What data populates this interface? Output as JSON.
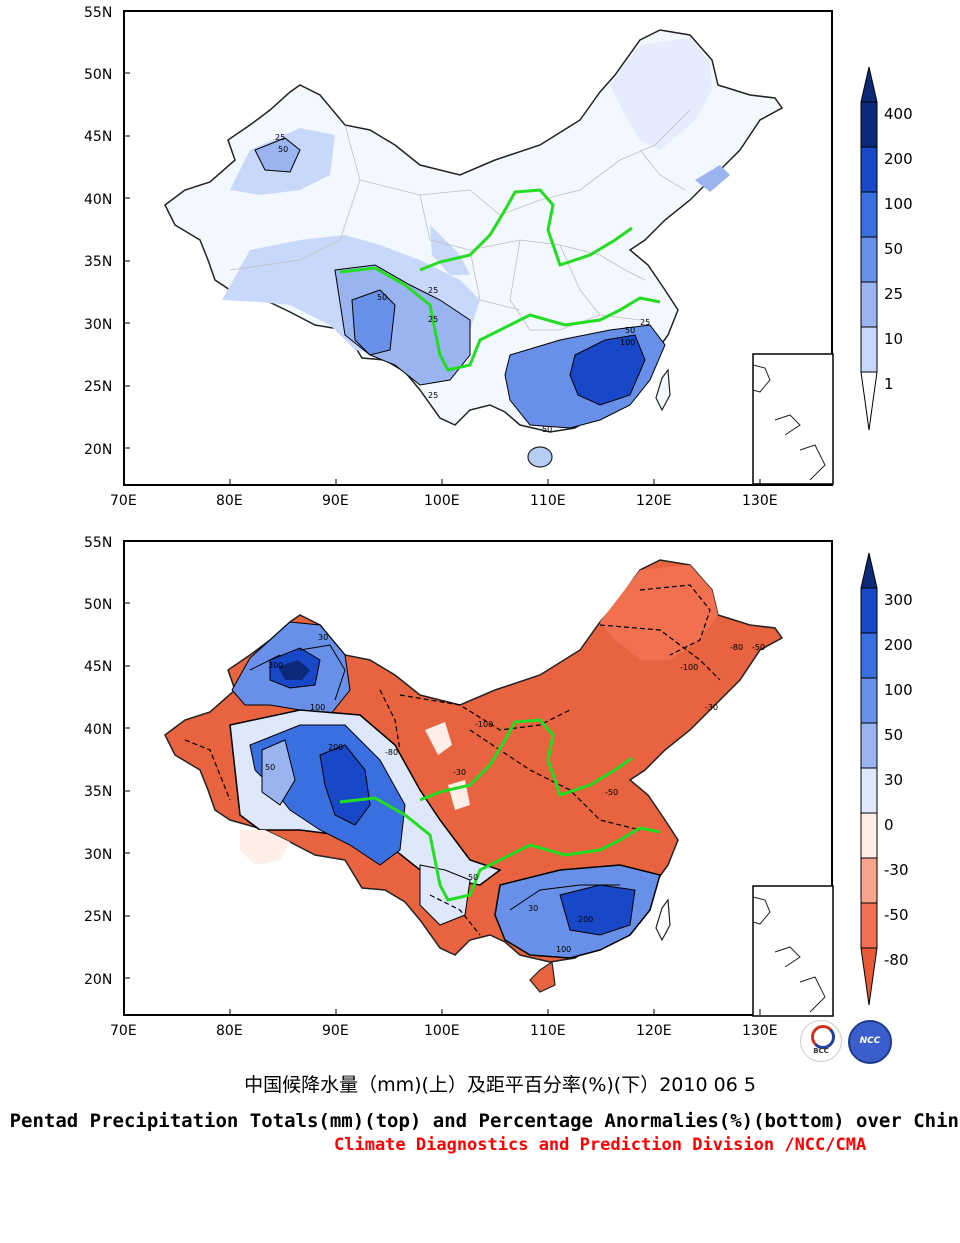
{
  "panels": [
    {
      "id": "top",
      "description_key": "totals",
      "lat_ticks": [
        "55N",
        "50N",
        "45N",
        "40N",
        "35N",
        "30N",
        "25N",
        "20N"
      ],
      "lon_ticks": [
        "70E",
        "80E",
        "90E",
        "100E",
        "110E",
        "120E",
        "130E"
      ],
      "colorbar": {
        "levels": [
          "400",
          "200",
          "100",
          "50",
          "25",
          "10",
          "1"
        ],
        "colors": [
          "#0d2a7a",
          "#1848c8",
          "#3a6fe0",
          "#6990e8",
          "#9ab4f0",
          "#c8d8fa",
          "#ffffff"
        ]
      },
      "contour_labels": [
        "25",
        "50",
        "25",
        "50",
        "25",
        "25",
        "50",
        "100",
        "25",
        "50"
      ]
    },
    {
      "id": "bottom",
      "description_key": "anomalies",
      "lat_ticks": [
        "55N",
        "50N",
        "45N",
        "40N",
        "35N",
        "30N",
        "25N",
        "20N"
      ],
      "lon_ticks": [
        "70E",
        "80E",
        "90E",
        "100E",
        "110E",
        "120E",
        "130E"
      ],
      "colorbar": {
        "levels": [
          "300",
          "200",
          "100",
          "50",
          "30",
          "0",
          "-30",
          "-50",
          "-80"
        ],
        "colors": [
          "#0d2a7a",
          "#1848c8",
          "#3a6fe0",
          "#6990e8",
          "#9ab4f0",
          "#dfe8fb",
          "#fdeee8",
          "#f7a48c",
          "#f07050",
          "#e85a36"
        ]
      },
      "contour_labels": [
        "-100",
        "-80",
        "-50",
        "-30",
        "30",
        "50",
        "100",
        "200",
        "300",
        "-100",
        "-80",
        "-50",
        "-30",
        "200",
        "100",
        "50",
        "30"
      ]
    }
  ],
  "logos": {
    "bcc": "BCC",
    "ncc": "NCC"
  },
  "title_cn": "中国候降水量（mm)(上）及距平百分率(%)(下）2010 06 5",
  "title_en": "Pentad Precipitation Totals(mm)(top) and Percentage Anormalies(%)(bottom) over China",
  "credit": "Climate Diagnostics and Prediction Division /NCC/CMA"
}
